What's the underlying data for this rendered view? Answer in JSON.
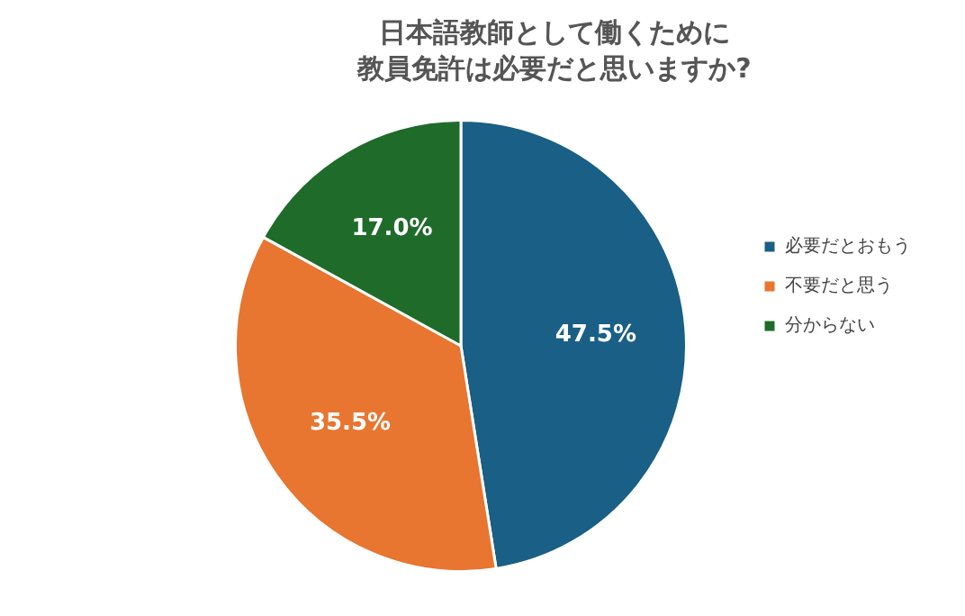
{
  "chart_data": {
    "type": "pie",
    "title": "日本語教師として働くために",
    "subtitle": "教員免許は必要だと思いますか?",
    "categories": [
      "必要だとおもう",
      "不要だと思う",
      "分からない"
    ],
    "values": [
      47.5,
      35.5,
      17.0
    ],
    "colors": [
      "#1a5f85",
      "#e87530",
      "#1e6b2a"
    ],
    "value_labels": [
      "47.5%",
      "35.5%",
      "17.0%"
    ],
    "legend": "right"
  }
}
